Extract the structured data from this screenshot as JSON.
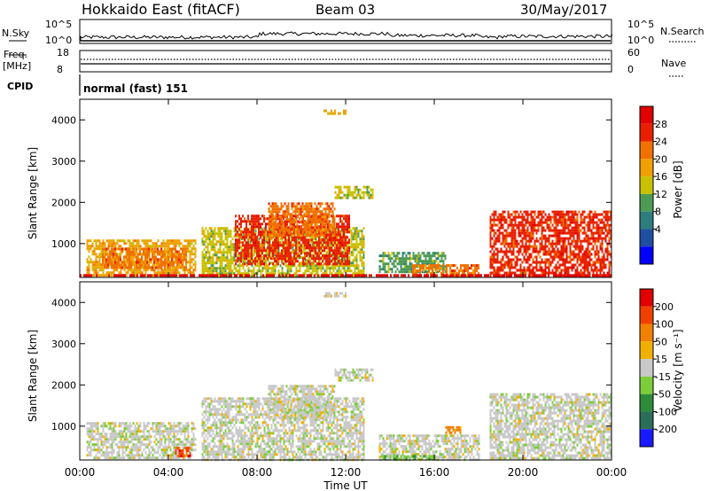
{
  "header": {
    "title": "Hokkaido East (fitACF)",
    "beam": "Beam 03",
    "date": "30/May/2017"
  },
  "summary_panels": {
    "nsky_label": "N.Sky",
    "nsearch_label": "N.Search",
    "nsky_ticks": [
      "10^5",
      "10^0"
    ],
    "nsearch_ticks": [
      "10^5",
      "10^0"
    ],
    "freq_label_top": "Freq.",
    "freq_label_unit": "[MHz]",
    "freq_ticks": [
      "18",
      "8"
    ],
    "nave_label": "Nave",
    "nave_ticks": [
      "60",
      "0"
    ],
    "cpid_label": "CPID",
    "cpid_text": "normal (fast) 151"
  },
  "chart_data": [
    {
      "type": "heatmap",
      "name": "power",
      "ylabel": "Slant Range [km]",
      "yticks": [
        "4000",
        "3000",
        "2000",
        "1000"
      ],
      "ylim": [
        180,
        4500
      ],
      "colorbar_label": "Power [dB]",
      "colorbar_ticks": [
        "28",
        "24",
        "20",
        "16",
        "12",
        "8",
        "4"
      ],
      "colors": [
        "#0000ff",
        "#1f4fa0",
        "#2e7d7d",
        "#4c9a55",
        "#c8c000",
        "#f0a000",
        "#f07000",
        "#e82000",
        "#e00000"
      ],
      "regions": [
        {
          "t0": 0.3,
          "t1": 5.2,
          "r0": 250,
          "r1": 1100,
          "c": 5
        },
        {
          "t0": 1.0,
          "t1": 4.8,
          "r0": 400,
          "r1": 900,
          "c": 6
        },
        {
          "t0": 5.5,
          "t1": 12.8,
          "r0": 200,
          "r1": 1400,
          "c": 4
        },
        {
          "t0": 7.0,
          "t1": 12.2,
          "r0": 500,
          "r1": 1700,
          "c": 7
        },
        {
          "t0": 8.5,
          "t1": 11.5,
          "r0": 1200,
          "r1": 2000,
          "c": 6
        },
        {
          "t0": 11.5,
          "t1": 13.2,
          "r0": 2100,
          "r1": 2400,
          "c": 4
        },
        {
          "t0": 13.5,
          "t1": 16.5,
          "r0": 300,
          "r1": 800,
          "c": 3
        },
        {
          "t0": 15.0,
          "t1": 18.0,
          "r0": 200,
          "r1": 500,
          "c": 6
        },
        {
          "t0": 18.5,
          "t1": 24.0,
          "r0": 900,
          "r1": 1800,
          "c": 7
        },
        {
          "t0": 18.5,
          "t1": 24.0,
          "r0": 250,
          "r1": 900,
          "c": 7
        },
        {
          "t0": 0.0,
          "t1": 24.0,
          "r0": 200,
          "r1": 260,
          "c": 8
        },
        {
          "t0": 11.0,
          "t1": 12.0,
          "r0": 4150,
          "r1": 4250,
          "c": 5
        }
      ]
    },
    {
      "type": "heatmap",
      "name": "velocity",
      "ylabel": "Slant Range [km]",
      "yticks": [
        "4000",
        "3000",
        "2000",
        "1000"
      ],
      "ylim": [
        180,
        4500
      ],
      "colorbar_label": "Velocity [m s⁻¹]",
      "colorbar_ticks": [
        "200",
        "100",
        "50",
        "15",
        "-15",
        "-50",
        "-100",
        "-200"
      ],
      "colors": [
        "#1a1aff",
        "#2a6e5a",
        "#2e8b3a",
        "#7ccd3a",
        "#c8c8c8",
        "#f0b000",
        "#f08000",
        "#f04000",
        "#e00000"
      ],
      "regions": [
        {
          "t0": 0.3,
          "t1": 5.2,
          "r0": 250,
          "r1": 1100,
          "c": 4
        },
        {
          "t0": 5.5,
          "t1": 12.8,
          "r0": 200,
          "r1": 1700,
          "c": 4
        },
        {
          "t0": 8.5,
          "t1": 11.5,
          "r0": 1200,
          "r1": 2000,
          "c": 4
        },
        {
          "t0": 11.5,
          "t1": 13.2,
          "r0": 2100,
          "r1": 2400,
          "c": 4
        },
        {
          "t0": 13.5,
          "t1": 18.0,
          "r0": 200,
          "r1": 800,
          "c": 4
        },
        {
          "t0": 13.5,
          "t1": 16.0,
          "r0": 200,
          "r1": 300,
          "c": 3
        },
        {
          "t0": 18.5,
          "t1": 24.0,
          "r0": 200,
          "r1": 1800,
          "c": 4
        },
        {
          "t0": 4.3,
          "t1": 5.0,
          "r0": 250,
          "r1": 500,
          "c": 7
        },
        {
          "t0": 16.5,
          "t1": 17.2,
          "r0": 850,
          "r1": 1000,
          "c": 6
        },
        {
          "t0": 11.0,
          "t1": 12.0,
          "r0": 4150,
          "r1": 4250,
          "c": 4
        }
      ]
    }
  ],
  "x_axis": {
    "label": "Time UT",
    "ticks": [
      "00:00",
      "04:00",
      "08:00",
      "12:00",
      "16:00",
      "20:00",
      "00:00"
    ]
  }
}
